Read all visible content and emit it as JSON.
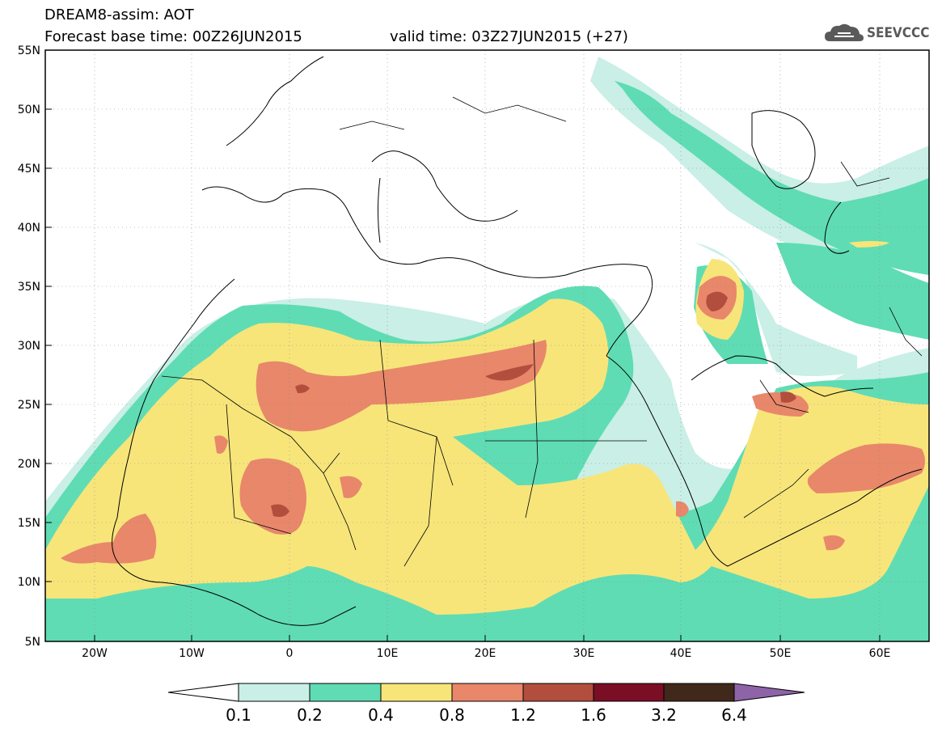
{
  "header": {
    "line1": "DREAM8-assim: AOT",
    "line2_left": "Forecast base time: 00Z26JUN2015",
    "line2_right": "valid time: 03Z27JUN2015 (+27)"
  },
  "logo": {
    "text": "SEEVCCC",
    "icon": "cloud-logo-icon"
  },
  "map": {
    "lat_labels": [
      "55N",
      "50N",
      "45N",
      "40N",
      "35N",
      "30N",
      "25N",
      "20N",
      "15N",
      "10N",
      "5N"
    ],
    "lon_labels": [
      "20W",
      "10W",
      "0",
      "10E",
      "20E",
      "30E",
      "40E",
      "50E",
      "60E"
    ]
  },
  "colorbar": {
    "labels": [
      "0.1",
      "0.2",
      "0.4",
      "0.8",
      "1.2",
      "1.6",
      "3.2",
      "6.4"
    ],
    "colors": [
      "#ffffff",
      "#c9efe6",
      "#5fdcb4",
      "#f7e57a",
      "#e8876a",
      "#b24e3e",
      "#7a0e24",
      "#40281a",
      "#8e64a8"
    ]
  }
}
